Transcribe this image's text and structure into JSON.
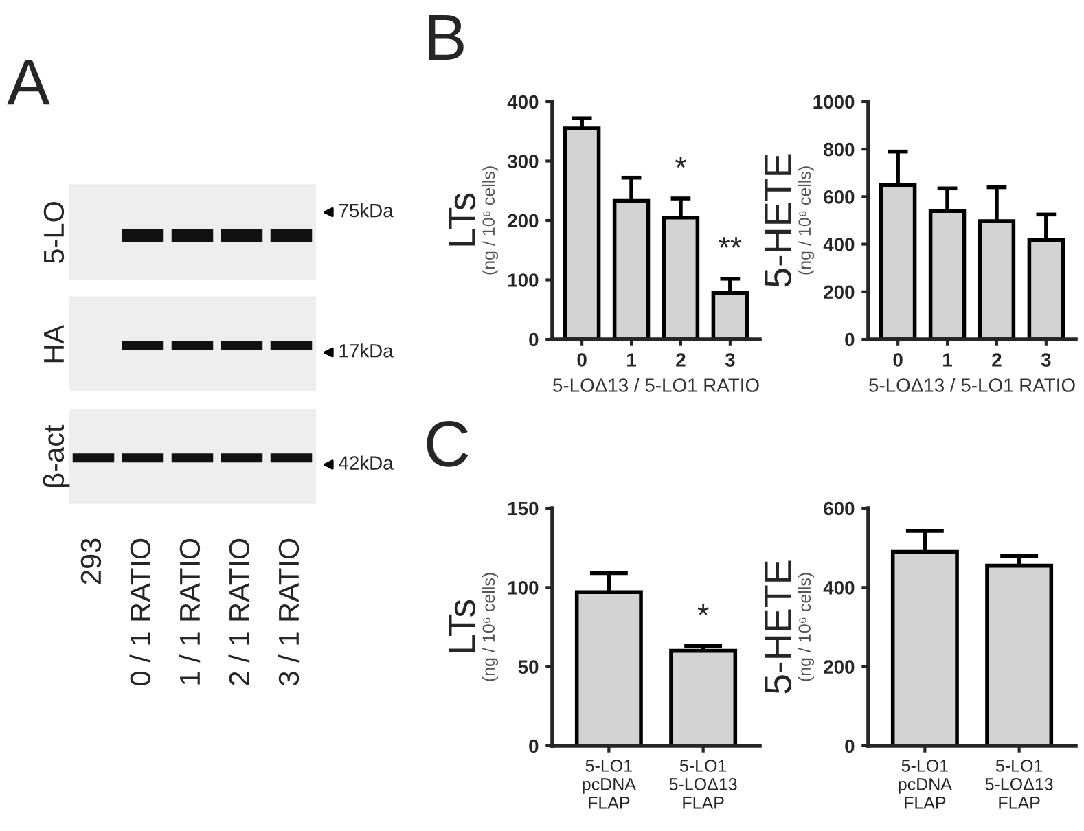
{
  "chart_data": [
    {
      "type": "other",
      "title": "A",
      "categories": [
        "293",
        "0 / 1 RATIO",
        "1 / 1 RATIO",
        "2 / 1 RATIO",
        "3 / 1 RATIO"
      ],
      "y_categories": [
        "5-LO",
        "HA",
        "β-act"
      ],
      "annotations": [
        "75kDa",
        "17kDa",
        "42kDa"
      ]
    },
    {
      "type": "bar",
      "title": "B",
      "categories": [
        "0",
        "1",
        "2",
        "3"
      ],
      "values": [
        355,
        233,
        205,
        78
      ],
      "errors": [
        [
          355,
          372
        ],
        [
          233,
          272
        ],
        [
          205,
          237
        ],
        [
          78,
          102
        ]
      ],
      "color": "#d3d3d3",
      "ylim": [
        0,
        400
      ],
      "yticks": [
        0,
        100,
        200,
        300,
        400
      ],
      "ylabel": "LTs\n(ng / 10⁶ cells)",
      "xlabel": "5-LOΔ13 / 5-LO1 RATIO",
      "annotations": [
        "*",
        "**"
      ]
    },
    {
      "type": "bar",
      "categories": [
        "0",
        "1",
        "2",
        "3"
      ],
      "values": [
        650,
        540,
        497,
        418
      ],
      "errors": [
        [
          650,
          790
        ],
        [
          540,
          635
        ],
        [
          497,
          640
        ],
        [
          418,
          525
        ]
      ],
      "color": "#d3d3d3",
      "ylim": [
        0,
        1000
      ],
      "yticks": [
        0,
        200,
        400,
        600,
        800,
        1000
      ],
      "ylabel": "5-HETE\n(ng / 10⁶ cells)",
      "xlabel": "5-LOΔ13 / 5-LO1 RATIO"
    },
    {
      "type": "bar",
      "title": "C",
      "categories": [
        "5-LO1\npcDNA\nFLAP",
        "5-LO1\n5-LOΔ13\nFLAP"
      ],
      "values": [
        97,
        60
      ],
      "errors": [
        [
          97,
          109
        ],
        [
          60,
          63
        ]
      ],
      "color": "#d3d3d3",
      "ylim": [
        0,
        150
      ],
      "yticks": [
        0,
        50,
        100,
        150
      ],
      "ylabel": "LTs\n(ng / 10⁶ cells)",
      "annotations": [
        "*"
      ]
    },
    {
      "type": "bar",
      "categories": [
        "5-LO1\npcDNA\nFLAP",
        "5-LO1\n5-LOΔ13\nFLAP"
      ],
      "values": [
        490,
        455
      ],
      "errors": [
        [
          490,
          543
        ],
        [
          455,
          480
        ]
      ],
      "color": "#d3d3d3",
      "ylim": [
        0,
        600
      ],
      "yticks": [
        0,
        200,
        400,
        600
      ],
      "ylabel": "5-HETE\n(ng / 10⁶ cells)"
    }
  ]
}
